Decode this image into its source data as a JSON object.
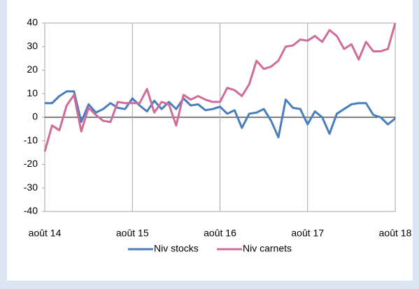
{
  "chart_data": {
    "type": "line",
    "categories": [
      "août 14",
      null,
      null,
      null,
      null,
      null,
      null,
      null,
      null,
      null,
      null,
      null,
      "août 15",
      null,
      null,
      null,
      null,
      null,
      null,
      null,
      null,
      null,
      null,
      null,
      "août 16",
      null,
      null,
      null,
      null,
      null,
      null,
      null,
      null,
      null,
      null,
      null,
      "août 17",
      null,
      null,
      null,
      null,
      null,
      null,
      null,
      null,
      null,
      null,
      null,
      "août 18"
    ],
    "series": [
      {
        "name": "Niv stocks",
        "color": "#4a7ebb",
        "values": [
          6,
          6,
          9,
          11,
          11,
          -2,
          5.5,
          2,
          3.5,
          6,
          4,
          3.5,
          8,
          5,
          2.5,
          7,
          3.5,
          6.5,
          3.5,
          8,
          5,
          5.5,
          3,
          3.5,
          4.5,
          1.5,
          3,
          -4.5,
          1.5,
          2,
          3.5,
          -1.5,
          -8.5,
          7.5,
          4,
          3.5,
          -3,
          2.5,
          0,
          -7,
          1.5,
          3.5,
          5.5,
          6,
          6,
          1,
          0,
          -3,
          -0.5
        ]
      },
      {
        "name": "Niv carnets",
        "color": "#cf6c98",
        "values": [
          -14.5,
          -3.5,
          -5.5,
          5,
          9.5,
          -6,
          4,
          1,
          -1.5,
          -2,
          6.5,
          6,
          6,
          6,
          12,
          2,
          6.5,
          5.5,
          -3.5,
          9.5,
          7.5,
          9,
          7.5,
          6.5,
          6.5,
          12.5,
          11.5,
          9,
          14,
          24,
          20.5,
          21.5,
          24,
          30,
          30.5,
          33,
          32.5,
          34.5,
          32,
          37,
          34.5,
          29,
          31,
          24.5,
          32,
          28,
          28,
          29,
          40
        ]
      }
    ],
    "ylim": [
      -40,
      40
    ],
    "yticks": [
      -40,
      -30,
      -20,
      -10,
      0,
      10,
      20,
      30,
      40
    ],
    "grid": "x",
    "legend": "bottom"
  }
}
